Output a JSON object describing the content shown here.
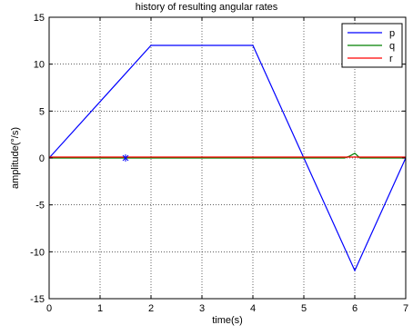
{
  "chart_data": {
    "type": "line",
    "title": "history of resulting angular rates",
    "xlabel": "time(s)",
    "ylabel": "amplitude(°/s)",
    "xlim": [
      0,
      7
    ],
    "ylim": [
      -15,
      15
    ],
    "xticks": [
      0,
      1,
      2,
      3,
      4,
      5,
      6,
      7
    ],
    "yticks": [
      -15,
      -10,
      -5,
      0,
      5,
      10,
      15
    ],
    "grid": true,
    "legend_position": "top-right",
    "series": [
      {
        "name": "p",
        "color": "#0000ff",
        "x": [
          0,
          2,
          4,
          6,
          7
        ],
        "y": [
          0,
          12,
          12,
          -12,
          0
        ]
      },
      {
        "name": "q",
        "color": "#008000",
        "x": [
          0,
          5.8,
          5.9,
          6.0,
          6.1,
          6.2,
          7
        ],
        "y": [
          0,
          0,
          0.2,
          0.5,
          0,
          0,
          0
        ]
      },
      {
        "name": "r",
        "color": "#ff0000",
        "x": [
          0,
          7
        ],
        "y": [
          0.1,
          0.1
        ]
      }
    ],
    "annotation_marker": {
      "x": 1.5,
      "y": 0,
      "color": "#0000ff"
    }
  }
}
